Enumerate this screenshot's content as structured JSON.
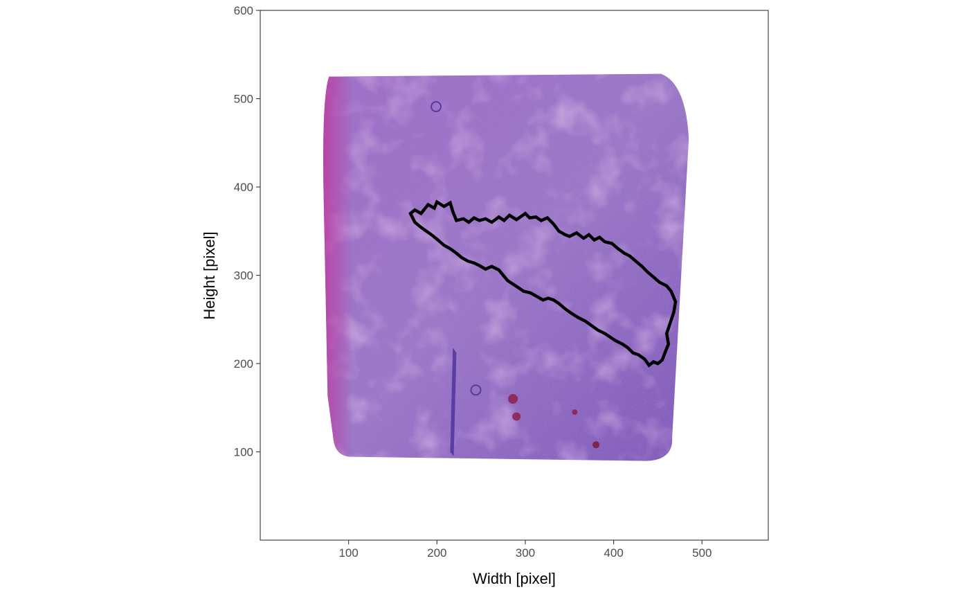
{
  "chart_data": {
    "type": "scatter",
    "title": "",
    "xlabel": "Width [pixel]",
    "ylabel": "Height [pixel]",
    "xlim": [
      0,
      575
    ],
    "ylim": [
      0,
      600
    ],
    "x_ticks": [
      100,
      200,
      300,
      400,
      500
    ],
    "y_ticks": [
      100,
      200,
      300,
      400,
      500,
      600
    ],
    "x_tick_labels": [
      "100",
      "200",
      "300",
      "400",
      "500"
    ],
    "y_tick_labels": [
      "100",
      "200",
      "300",
      "400",
      "500",
      "600"
    ],
    "grid": false,
    "legend": "none",
    "background_image": {
      "description_kind": "H&E stained tissue section",
      "extent": {
        "x": [
          70,
          485
        ],
        "y": [
          85,
          525
        ]
      },
      "colors": {
        "base": "#8f64bd",
        "pink": "#c03fa0",
        "dark": "#4b2f9a",
        "light": "#c9a6d6"
      }
    },
    "outline": {
      "color": "#000000",
      "x": [
        170,
        175,
        182,
        190,
        197,
        200,
        208,
        215,
        218,
        222,
        230,
        236,
        242,
        248,
        255,
        262,
        270,
        276,
        282,
        290,
        300,
        305,
        312,
        318,
        325,
        332,
        338,
        345,
        350,
        358,
        366,
        372,
        378,
        384,
        390,
        398,
        405,
        412,
        418,
        425,
        432,
        438,
        445,
        452,
        460,
        465,
        470,
        468,
        464,
        460,
        462,
        458,
        455,
        450,
        445,
        440,
        435,
        428,
        422,
        416,
        410,
        402,
        396,
        390,
        382,
        375,
        368,
        360,
        352,
        345,
        338,
        332,
        326,
        320,
        313,
        306,
        298,
        292,
        286,
        280,
        275,
        270,
        262,
        255,
        248,
        242,
        235,
        228,
        222,
        215,
        208,
        201,
        195,
        188,
        181,
        175,
        170
      ],
      "y": [
        370,
        374,
        370,
        380,
        376,
        383,
        378,
        382,
        372,
        362,
        364,
        360,
        365,
        362,
        364,
        360,
        366,
        362,
        368,
        363,
        370,
        365,
        366,
        362,
        365,
        358,
        350,
        346,
        344,
        348,
        342,
        346,
        340,
        343,
        338,
        336,
        330,
        325,
        322,
        316,
        310,
        304,
        298,
        292,
        288,
        282,
        270,
        258,
        246,
        234,
        222,
        212,
        204,
        200,
        202,
        198,
        205,
        210,
        212,
        218,
        222,
        226,
        230,
        234,
        238,
        243,
        248,
        252,
        257,
        262,
        268,
        272,
        274,
        272,
        276,
        280,
        282,
        286,
        290,
        294,
        300,
        306,
        310,
        307,
        311,
        314,
        316,
        320,
        325,
        330,
        334,
        340,
        345,
        350,
        355,
        360,
        370
      ]
    }
  }
}
